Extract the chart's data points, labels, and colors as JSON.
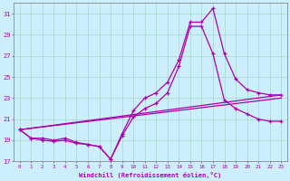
{
  "xlabel": "Windchill (Refroidissement éolien,°C)",
  "bg_color": "#cceeff",
  "grid_color": "#aaddcc",
  "line_color": "#aa00aa",
  "xlim": [
    -0.5,
    23.5
  ],
  "ylim": [
    17,
    32
  ],
  "yticks": [
    17,
    19,
    21,
    23,
    25,
    27,
    29,
    31
  ],
  "xticks": [
    0,
    1,
    2,
    3,
    4,
    5,
    6,
    7,
    8,
    9,
    10,
    11,
    12,
    13,
    14,
    15,
    16,
    17,
    18,
    19,
    20,
    21,
    22,
    23
  ],
  "line1_x": [
    0,
    1,
    2,
    3,
    4,
    5,
    6,
    7,
    8,
    9,
    10,
    11,
    12,
    13,
    14,
    15,
    16,
    17,
    18,
    19,
    20,
    21,
    22,
    23
  ],
  "line1_y": [
    20.0,
    19.2,
    19.2,
    19.0,
    19.2,
    18.8,
    18.6,
    18.4,
    17.2,
    19.6,
    21.8,
    23.0,
    23.5,
    24.5,
    26.6,
    30.2,
    30.2,
    31.5,
    27.2,
    24.8,
    23.8,
    23.5,
    23.3,
    23.3
  ],
  "line2_x": [
    0,
    1,
    2,
    3,
    4,
    5,
    6,
    7,
    8,
    9,
    10,
    11,
    12,
    13,
    14,
    15,
    16,
    17,
    18,
    19,
    20,
    21,
    22,
    23
  ],
  "line2_y": [
    20.0,
    19.2,
    19.0,
    18.9,
    19.0,
    18.7,
    18.6,
    18.4,
    17.2,
    19.4,
    21.2,
    22.0,
    22.5,
    23.5,
    26.0,
    29.8,
    29.8,
    27.2,
    22.8,
    22.0,
    21.5,
    21.0,
    20.8,
    20.8
  ],
  "line3_x": [
    0,
    23
  ],
  "line3_y": [
    20.0,
    23.3
  ],
  "line4_x": [
    0,
    23
  ],
  "line4_y": [
    20.0,
    23.0
  ]
}
